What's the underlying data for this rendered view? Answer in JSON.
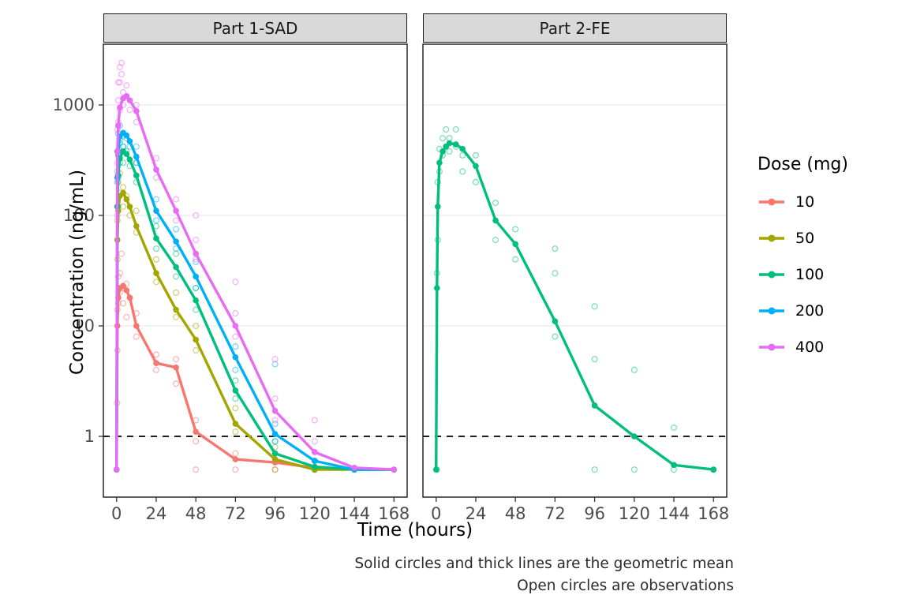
{
  "figure": {
    "ylabel": "Concentration (ng/mL)",
    "xlabel": "Time (hours)",
    "caption_line1": "Solid circles and thick lines are the geometric mean",
    "caption_line2": "Open circles are observations"
  },
  "legend": {
    "title": "Dose (mg)",
    "entries": [
      {
        "label": "10",
        "color": "#F8766D"
      },
      {
        "label": "50",
        "color": "#A3A500"
      },
      {
        "label": "100",
        "color": "#00BF7D"
      },
      {
        "label": "200",
        "color": "#00B0F6"
      },
      {
        "label": "400",
        "color": "#E76BF3"
      }
    ]
  },
  "chart_data": {
    "type": "line",
    "x_scale": "linear",
    "y_scale": "log10",
    "xlabel": "Time (hours)",
    "ylabel": "Concentration (ng/mL)",
    "x_ticks": [
      0,
      24,
      48,
      72,
      96,
      120,
      144,
      168
    ],
    "y_ticks": [
      1,
      10,
      100,
      1000
    ],
    "x_range": [
      -8,
      176
    ],
    "y_range_log10": [
      -0.55,
      3.55
    ],
    "grid": "horizontal-major",
    "legend_position": "right",
    "reference_line": {
      "y": 1,
      "style": "dashed",
      "color": "#000000"
    },
    "panels": [
      {
        "label": "Part 1-SAD",
        "series": [
          {
            "dose_mg": 10,
            "color": "#F8766D",
            "mean_t": [
              0,
              0.5,
              1,
              2,
              4,
              6,
              8,
              12,
              24,
              36,
              48,
              72,
              96,
              120,
              144,
              168
            ],
            "mean_c": [
              0.5,
              10,
              18,
              22,
              23,
              21,
              18,
              10,
              4.6,
              4.2,
              1.1,
              0.62,
              0.58,
              0.52,
              0.5,
              0.5
            ],
            "obs": [
              [
                0.3,
                2
              ],
              [
                0.5,
                6
              ],
              [
                0.5,
                14
              ],
              [
                1,
                16
              ],
              [
                1,
                28
              ],
              [
                2,
                20
              ],
              [
                2,
                30
              ],
              [
                3,
                45
              ],
              [
                4,
                22
              ],
              [
                4,
                16
              ],
              [
                6,
                24
              ],
              [
                6,
                12
              ],
              [
                8,
                18
              ],
              [
                12,
                8
              ],
              [
                12,
                13
              ],
              [
                24,
                4
              ],
              [
                24,
                5.5
              ],
              [
                36,
                3
              ],
              [
                36,
                5
              ],
              [
                48,
                0.9
              ],
              [
                48,
                1.4
              ],
              [
                48,
                0.5
              ],
              [
                72,
                0.5
              ],
              [
                72,
                0.7
              ],
              [
                96,
                0.5
              ]
            ]
          },
          {
            "dose_mg": 50,
            "color": "#A3A500",
            "mean_t": [
              0,
              0.5,
              1,
              2,
              4,
              6,
              8,
              12,
              24,
              36,
              48,
              72,
              96,
              120,
              144,
              168
            ],
            "mean_c": [
              0.5,
              60,
              110,
              150,
              160,
              140,
              120,
              80,
              30,
              14,
              7.5,
              1.3,
              0.62,
              0.5,
              0.5,
              0.5
            ],
            "obs": [
              [
                0.5,
                40
              ],
              [
                0.5,
                90
              ],
              [
                1,
                120
              ],
              [
                1,
                200
              ],
              [
                2,
                160
              ],
              [
                2,
                240
              ],
              [
                4,
                180
              ],
              [
                4,
                120
              ],
              [
                6,
                150
              ],
              [
                8,
                100
              ],
              [
                12,
                70
              ],
              [
                12,
                110
              ],
              [
                24,
                25
              ],
              [
                24,
                40
              ],
              [
                36,
                12
              ],
              [
                36,
                20
              ],
              [
                48,
                6
              ],
              [
                48,
                10
              ],
              [
                72,
                1.1
              ],
              [
                72,
                1.8
              ],
              [
                96,
                0.5
              ],
              [
                96,
                0.8
              ],
              [
                120,
                0.5
              ]
            ]
          },
          {
            "dose_mg": 100,
            "color": "#00BF7D",
            "mean_t": [
              0,
              0.5,
              1,
              2,
              4,
              6,
              8,
              12,
              24,
              36,
              48,
              72,
              96,
              120,
              144,
              168
            ],
            "mean_c": [
              0.5,
              120,
              230,
              330,
              380,
              360,
              320,
              230,
              62,
              34,
              17,
              2.6,
              0.7,
              0.53,
              0.5,
              0.5
            ],
            "obs": [
              [
                0.5,
                120
              ],
              [
                0.5,
                250
              ],
              [
                1,
                220
              ],
              [
                1,
                350
              ],
              [
                2,
                300
              ],
              [
                2,
                450
              ],
              [
                4,
                420
              ],
              [
                4,
                300
              ],
              [
                6,
                380
              ],
              [
                8,
                280
              ],
              [
                12,
                200
              ],
              [
                12,
                300
              ],
              [
                24,
                50
              ],
              [
                24,
                80
              ],
              [
                36,
                28
              ],
              [
                36,
                45
              ],
              [
                48,
                14
              ],
              [
                48,
                22
              ],
              [
                72,
                2.2
              ],
              [
                72,
                3.2
              ],
              [
                96,
                0.6
              ],
              [
                96,
                0.9
              ],
              [
                120,
                0.5
              ]
            ]
          },
          {
            "dose_mg": 200,
            "color": "#00B0F6",
            "mean_t": [
              0,
              0.5,
              1,
              2,
              4,
              6,
              8,
              12,
              24,
              36,
              48,
              72,
              96,
              120,
              144,
              168
            ],
            "mean_c": [
              0.5,
              220,
              380,
              520,
              560,
              530,
              470,
              340,
              110,
              58,
              28,
              5.2,
              1.05,
              0.6,
              0.5,
              0.5
            ],
            "obs": [
              [
                0.5,
                200
              ],
              [
                0.5,
                380
              ],
              [
                1,
                350
              ],
              [
                1,
                550
              ],
              [
                2,
                480
              ],
              [
                2,
                650
              ],
              [
                4,
                520
              ],
              [
                4,
                420
              ],
              [
                6,
                500
              ],
              [
                8,
                420
              ],
              [
                12,
                300
              ],
              [
                12,
                420
              ],
              [
                24,
                90
              ],
              [
                24,
                140
              ],
              [
                36,
                50
              ],
              [
                36,
                75
              ],
              [
                48,
                22
              ],
              [
                48,
                38
              ],
              [
                72,
                4
              ],
              [
                72,
                6.5
              ],
              [
                96,
                0.9
              ],
              [
                96,
                1.3
              ],
              [
                96,
                4.5
              ],
              [
                120,
                0.5
              ],
              [
                120,
                0.6
              ]
            ]
          },
          {
            "dose_mg": 400,
            "color": "#E76BF3",
            "mean_t": [
              0,
              0.5,
              1,
              2,
              4,
              6,
              8,
              12,
              24,
              36,
              48,
              72,
              96,
              120,
              144,
              168
            ],
            "mean_c": [
              0.5,
              380,
              650,
              950,
              1150,
              1200,
              1100,
              880,
              260,
              110,
              45,
              10,
              1.7,
              0.72,
              0.52,
              0.5
            ],
            "obs": [
              [
                0.5,
                100
              ],
              [
                0.5,
                300
              ],
              [
                0.5,
                600
              ],
              [
                1,
                700
              ],
              [
                1,
                1100
              ],
              [
                1,
                1600
              ],
              [
                2,
                900
              ],
              [
                2,
                1600
              ],
              [
                2,
                2200
              ],
              [
                3,
                2400
              ],
              [
                3,
                1900
              ],
              [
                4,
                1300
              ],
              [
                4,
                1000
              ],
              [
                6,
                1200
              ],
              [
                6,
                1500
              ],
              [
                8,
                900
              ],
              [
                12,
                700
              ],
              [
                12,
                1000
              ],
              [
                24,
                220
              ],
              [
                24,
                330
              ],
              [
                36,
                90
              ],
              [
                36,
                140
              ],
              [
                48,
                40
              ],
              [
                48,
                60
              ],
              [
                48,
                100
              ],
              [
                72,
                8
              ],
              [
                72,
                13
              ],
              [
                72,
                25
              ],
              [
                96,
                1.4
              ],
              [
                96,
                2.2
              ],
              [
                96,
                5
              ],
              [
                120,
                0.6
              ],
              [
                120,
                0.9
              ],
              [
                120,
                1.4
              ],
              [
                144,
                0.5
              ]
            ]
          }
        ]
      },
      {
        "label": "Part 2-FE",
        "series": [
          {
            "dose_mg": 100,
            "color": "#00BF7D",
            "mean_t": [
              0,
              0.5,
              1,
              2,
              4,
              6,
              8,
              12,
              16,
              24,
              36,
              48,
              72,
              96,
              120,
              144,
              168
            ],
            "mean_c": [
              0.5,
              22,
              120,
              300,
              380,
              420,
              450,
              440,
              400,
              280,
              90,
              55,
              11,
              1.9,
              1.0,
              0.55,
              0.5
            ],
            "obs": [
              [
                0.5,
                0.5
              ],
              [
                0.5,
                30
              ],
              [
                1,
                60
              ],
              [
                1,
                200
              ],
              [
                2,
                250
              ],
              [
                2,
                400
              ],
              [
                4,
                350
              ],
              [
                4,
                500
              ],
              [
                6,
                420
              ],
              [
                6,
                600
              ],
              [
                8,
                500
              ],
              [
                8,
                380
              ],
              [
                12,
                420
              ],
              [
                12,
                600
              ],
              [
                16,
                350
              ],
              [
                16,
                250
              ],
              [
                24,
                200
              ],
              [
                24,
                350
              ],
              [
                36,
                60
              ],
              [
                36,
                130
              ],
              [
                48,
                40
              ],
              [
                48,
                75
              ],
              [
                72,
                8
              ],
              [
                72,
                30
              ],
              [
                72,
                50
              ],
              [
                96,
                5
              ],
              [
                96,
                15
              ],
              [
                96,
                0.5
              ],
              [
                120,
                0.5
              ],
              [
                120,
                4
              ],
              [
                144,
                0.5
              ],
              [
                144,
                1.2
              ],
              [
                168,
                0.5
              ]
            ]
          }
        ]
      }
    ]
  }
}
